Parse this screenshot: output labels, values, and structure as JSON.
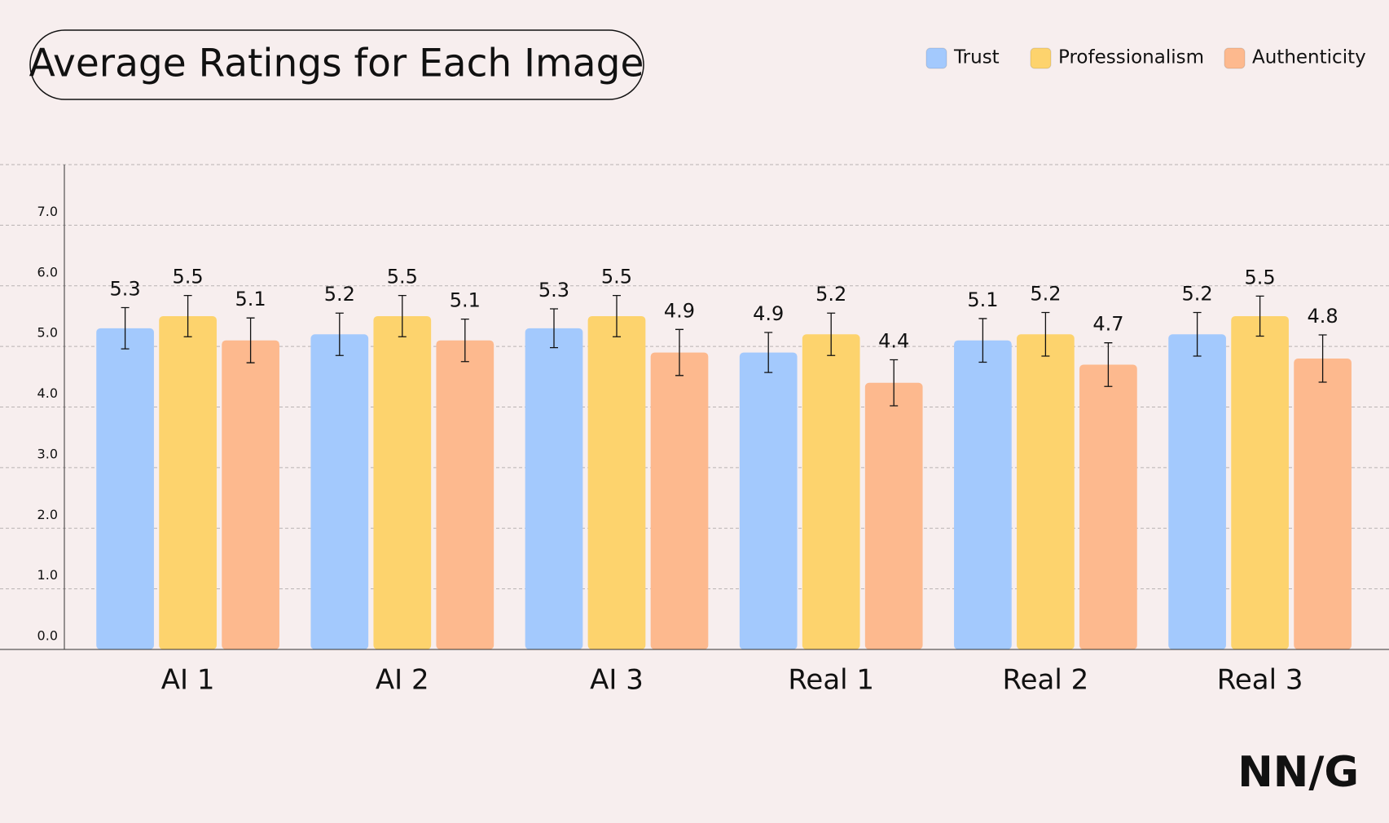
{
  "chart_data": {
    "type": "bar",
    "title": "Average Ratings for Each Image",
    "categories": [
      "AI 1",
      "AI 2",
      "AI 3",
      "Real 1",
      "Real 2",
      "Real 3"
    ],
    "series": [
      {
        "name": "Trust",
        "color": "#a3c9fd",
        "values": [
          5.3,
          5.2,
          5.3,
          4.9,
          5.1,
          5.2
        ],
        "errors": [
          0.34,
          0.35,
          0.32,
          0.33,
          0.36,
          0.36
        ]
      },
      {
        "name": "Professionalism",
        "color": "#fdd36d",
        "values": [
          5.5,
          5.5,
          5.5,
          5.2,
          5.2,
          5.5
        ],
        "errors": [
          0.34,
          0.34,
          0.34,
          0.35,
          0.36,
          0.33
        ]
      },
      {
        "name": "Authenticity",
        "color": "#fdb98e",
        "values": [
          5.1,
          5.1,
          4.9,
          4.4,
          4.7,
          4.8
        ],
        "errors": [
          0.37,
          0.35,
          0.38,
          0.38,
          0.36,
          0.39
        ]
      }
    ],
    "ylim": [
      0,
      8
    ],
    "yticks": [
      {
        "value": 0,
        "label": "0.0"
      },
      {
        "value": 1,
        "label": "1.0"
      },
      {
        "value": 2,
        "label": "2.0"
      },
      {
        "value": 3,
        "label": "3.0"
      },
      {
        "value": 4,
        "label": "4.0"
      },
      {
        "value": 5,
        "label": "5.0"
      },
      {
        "value": 6,
        "label": "6.0"
      },
      {
        "value": 7,
        "label": "7.0"
      },
      8
    ],
    "grid": true,
    "legend": "top-right"
  },
  "logo": "NN/G"
}
